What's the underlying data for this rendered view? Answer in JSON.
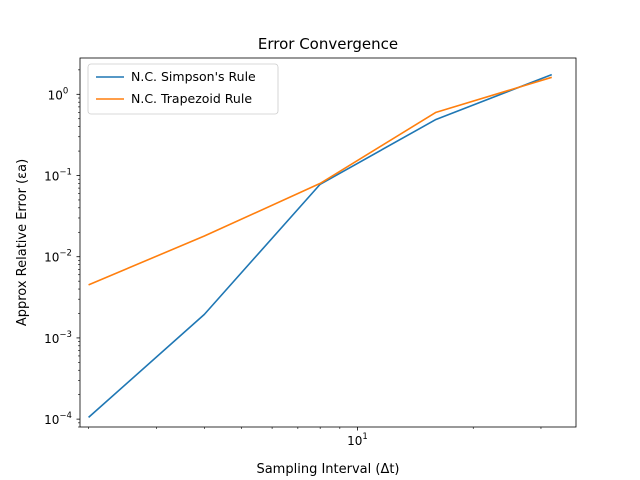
{
  "chart_data": {
    "type": "line",
    "title": "Error Convergence",
    "xlabel": "Sampling Interval (Δt)",
    "ylabel": "Approx Relative Error (εa)",
    "xscale": "log",
    "yscale": "log",
    "xlim": [
      1.9,
      37
    ],
    "ylim": [
      8e-05,
      2.8
    ],
    "x_major_ticks": [
      {
        "value": 10,
        "label": "10",
        "exp": "1"
      }
    ],
    "x_minor_ticks": [
      2,
      3,
      4,
      5,
      6,
      7,
      8,
      9,
      20,
      30
    ],
    "y_major_ticks": [
      {
        "value": 0.0001,
        "label": "10",
        "exp": "−4"
      },
      {
        "value": 0.001,
        "label": "10",
        "exp": "−3"
      },
      {
        "value": 0.01,
        "label": "10",
        "exp": "−2"
      },
      {
        "value": 0.1,
        "label": "10",
        "exp": "−1"
      },
      {
        "value": 1,
        "label": "10",
        "exp": "0"
      }
    ],
    "grid": false,
    "legend_position": "top-left",
    "series": [
      {
        "name": "N.C. Simpson's Rule",
        "color": "#1f77b4",
        "x": [
          2,
          4,
          8,
          16,
          32
        ],
        "y": [
          0.000105,
          0.00195,
          0.078,
          0.49,
          1.75
        ]
      },
      {
        "name": "N.C. Trapezoid Rule",
        "color": "#ff7f0e",
        "x": [
          2,
          4,
          8,
          16,
          32
        ],
        "y": [
          0.0045,
          0.018,
          0.08,
          0.6,
          1.62
        ]
      }
    ]
  }
}
